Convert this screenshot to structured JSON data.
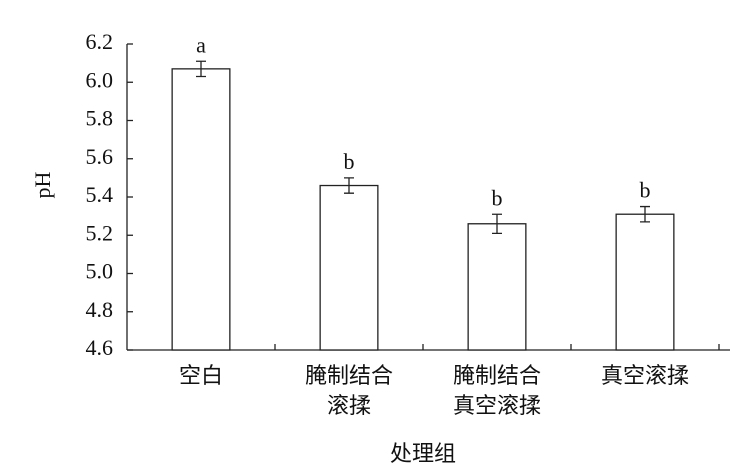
{
  "chart_data": {
    "type": "bar",
    "categories": [
      "空白",
      "腌制结合\n滚揉",
      "腌制结合\n真空滚揉",
      "真空滚揉"
    ],
    "values": [
      6.07,
      5.46,
      5.26,
      5.31
    ],
    "errors": [
      0.04,
      0.04,
      0.05,
      0.04
    ],
    "annotations": [
      "a",
      "b",
      "b",
      "b"
    ],
    "color": "#ffffff",
    "ylabel": "pH",
    "xlabel": "处理组",
    "ylim": [
      4.6,
      6.2
    ],
    "yticks": [
      4.6,
      4.8,
      {
        "value": 5,
        "label": "5.0"
      },
      5.2,
      5.4,
      5.6,
      5.8,
      {
        "value": 6,
        "label": "6.0"
      },
      6.2
    ]
  }
}
